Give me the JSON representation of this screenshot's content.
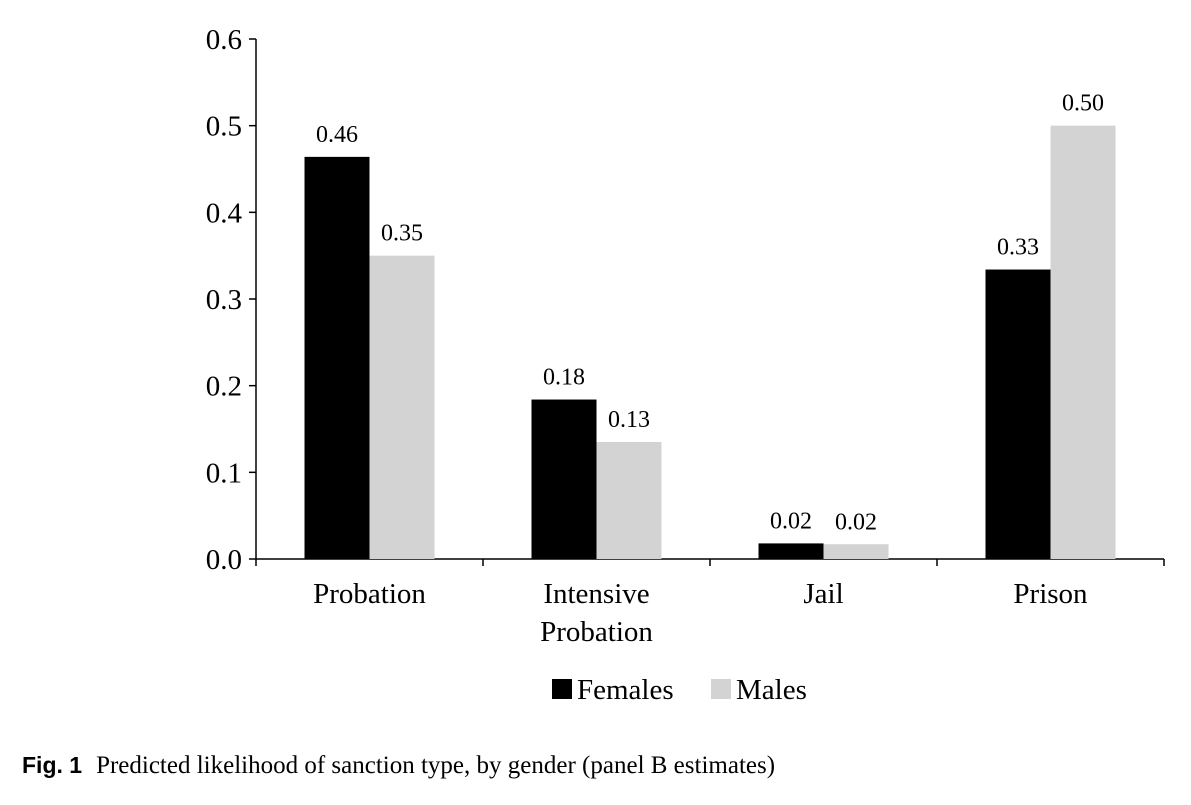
{
  "chart_data": {
    "type": "bar",
    "title": "",
    "xlabel": "",
    "ylabel": "",
    "ylim": [
      0,
      0.6
    ],
    "yticks": [
      "0.0",
      "0.1",
      "0.2",
      "0.3",
      "0.4",
      "0.5",
      "0.6"
    ],
    "categories": [
      [
        "Probation"
      ],
      [
        "Intensive",
        "Probation"
      ],
      [
        "Jail"
      ],
      [
        "Prison"
      ]
    ],
    "series": [
      {
        "name": "Females",
        "color": "#000000",
        "values": [
          0.464,
          0.184,
          0.018,
          0.334
        ],
        "labels": [
          "0.46",
          "0.18",
          "0.02",
          "0.33"
        ]
      },
      {
        "name": "Males",
        "color": "#d3d3d3",
        "values": [
          0.35,
          0.135,
          0.017,
          0.5
        ],
        "labels": [
          "0.35",
          "0.13",
          "0.02",
          "0.50"
        ]
      }
    ],
    "legend_position": "bottom-center",
    "grid": false
  },
  "caption": {
    "label": "Fig. 1",
    "text": "Predicted likelihood of sanction type, by gender (panel B estimates)"
  }
}
